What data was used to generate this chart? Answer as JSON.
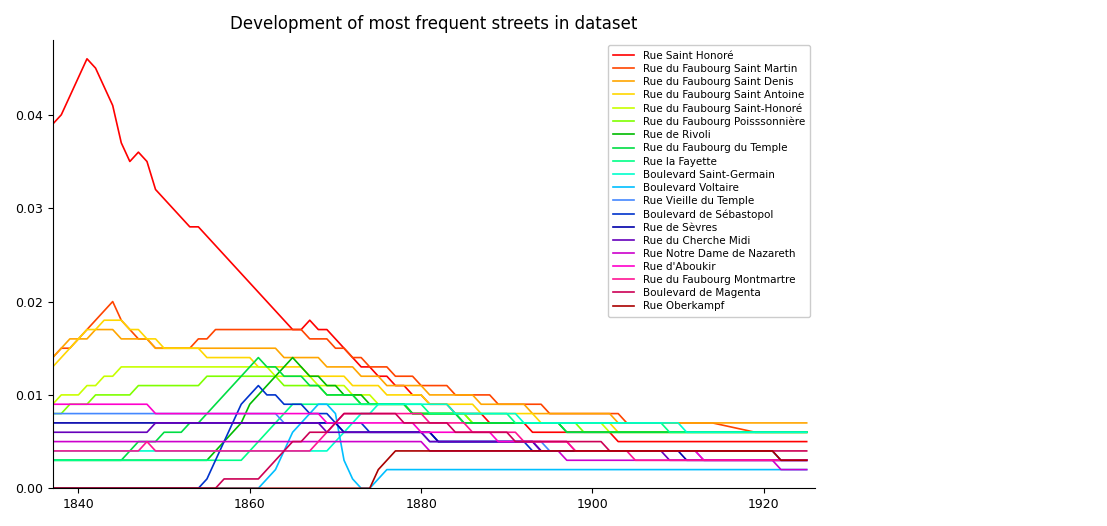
{
  "title": "Development of most frequent streets in dataset",
  "streets": [
    "Rue Saint Honoré",
    "Rue du Faubourg Saint Martin",
    "Rue du Faubourg Saint Denis",
    "Rue du Faubourg Saint Antoine",
    "Rue du Faubourg Saint-Honoré",
    "Rue du Faubourg Poisssonnière",
    "Rue de Rivoli",
    "Rue du Faubourg du Temple",
    "Rue la Fayette",
    "Boulevard Saint-Germain",
    "Boulevard Voltaire",
    "Rue Vieille du Temple",
    "Boulevard de Sébastopol",
    "Rue de Sèvres",
    "Rue du Cherche Midi",
    "Rue Notre Dame de Nazareth",
    "Rue d'Aboukir",
    "Rue du Faubourg Montmartre",
    "Boulevard de Magenta",
    "Rue Oberkampf"
  ],
  "colors": [
    "#ff0000",
    "#ff4500",
    "#ffa500",
    "#ffd700",
    "#c8ff00",
    "#7fff00",
    "#00bb00",
    "#00dd44",
    "#00ff88",
    "#00ffcc",
    "#00bfff",
    "#4488ff",
    "#0033cc",
    "#0000aa",
    "#6600bb",
    "#cc00cc",
    "#ff00cc",
    "#ff1493",
    "#cc0055",
    "#aa0000"
  ],
  "figsize": [
    11.07,
    5.26
  ],
  "dpi": 100
}
